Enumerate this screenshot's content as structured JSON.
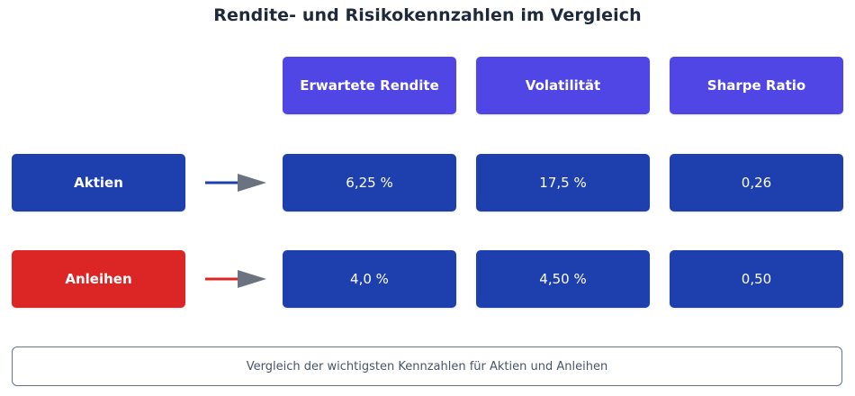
{
  "title": "Rendite- und Risikokennzahlen im Vergleich",
  "columns": [
    "Erwartete Rendite",
    "Volatilität",
    "Sharpe Ratio"
  ],
  "rows": [
    {
      "label": "Aktien",
      "color": "#1e40af",
      "arrow_color": "#1e40af",
      "values": [
        "6,25 %",
        "17,5 %",
        "0,26"
      ]
    },
    {
      "label": "Anleihen",
      "color": "#dc2626",
      "arrow_color": "#dc2626",
      "values": [
        "4,0 %",
        "4,50 %",
        "0,50"
      ]
    }
  ],
  "footer": "Vergleich der wichtigsten Kennzahlen für Aktien und Anleihen",
  "colors": {
    "header": "#4f46e5",
    "cell": "#1e40af",
    "arrowhead": "#6b7280"
  }
}
